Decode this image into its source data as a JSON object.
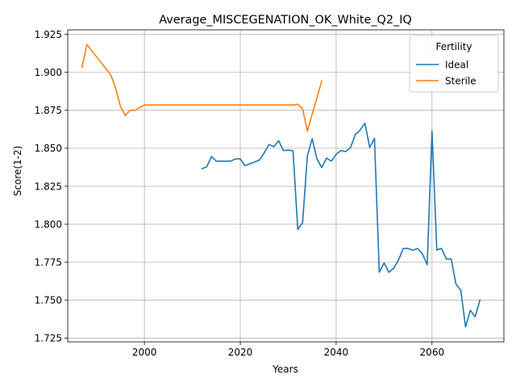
{
  "chart_data": {
    "type": "line",
    "title": "Average_MISCEGENATION_OK_White_Q2_IQ",
    "xlabel": "Years",
    "ylabel": "Score(1-2)",
    "xlim": [
      1984,
      2075
    ],
    "ylim": [
      1.7225,
      1.928
    ],
    "x_ticks": [
      2000,
      2020,
      2040,
      2060
    ],
    "y_ticks": [
      1.725,
      1.75,
      1.775,
      1.8,
      1.825,
      1.85,
      1.875,
      1.9,
      1.925
    ],
    "x_tick_labels": [
      "2000",
      "2020",
      "2040",
      "2060"
    ],
    "y_tick_labels": [
      "1.725",
      "1.750",
      "1.775",
      "1.800",
      "1.825",
      "1.850",
      "1.875",
      "1.900",
      "1.925"
    ],
    "grid": true,
    "legend": {
      "title": "Fertility",
      "placement": "top-right"
    },
    "series": [
      {
        "name": "Ideal",
        "color": "#1f77b4",
        "x": [
          2012,
          2013,
          2014,
          2015,
          2016,
          2017,
          2018,
          2019,
          2020,
          2021,
          2022,
          2023,
          2024,
          2025,
          2026,
          2027,
          2028,
          2029,
          2030,
          2031,
          2032,
          2033,
          2034,
          2035,
          2036,
          2037,
          2038,
          2039,
          2040,
          2041,
          2042,
          2043,
          2044,
          2045,
          2046,
          2047,
          2048,
          2049,
          2050,
          2051,
          2052,
          2053,
          2054,
          2055,
          2056,
          2057,
          2058,
          2059,
          2060,
          2061,
          2062,
          2063,
          2064,
          2065,
          2066,
          2067,
          2068,
          2069,
          2070
        ],
        "y": [
          1.8365,
          1.8378,
          1.8445,
          1.8415,
          1.8415,
          1.8415,
          1.8415,
          1.843,
          1.843,
          1.8385,
          1.8398,
          1.841,
          1.8423,
          1.847,
          1.8525,
          1.851,
          1.855,
          1.8485,
          1.8488,
          1.8483,
          1.7965,
          1.801,
          1.845,
          1.8563,
          1.843,
          1.8373,
          1.8435,
          1.8415,
          1.846,
          1.8485,
          1.8478,
          1.8505,
          1.859,
          1.862,
          1.8665,
          1.8505,
          1.8565,
          1.7683,
          1.7745,
          1.7683,
          1.771,
          1.7763,
          1.784,
          1.784,
          1.7828,
          1.784,
          1.7805,
          1.7733,
          1.8613,
          1.783,
          1.784,
          1.777,
          1.777,
          1.7605,
          1.7565,
          1.7323,
          1.7433,
          1.739,
          1.75
        ]
      },
      {
        "name": "Sterile",
        "color": "#ff7f0e",
        "x": [
          1987,
          1988,
          1993,
          1994,
          1995,
          1996,
          1997,
          1998,
          1999,
          2000,
          2001,
          2010,
          2020,
          2030,
          2031,
          2032,
          2033,
          2034,
          2035,
          2036,
          2037
        ],
        "y": [
          1.9033,
          1.9183,
          1.8983,
          1.8895,
          1.8775,
          1.8715,
          1.875,
          1.875,
          1.8768,
          1.8785,
          1.8785,
          1.8785,
          1.8785,
          1.8785,
          1.8785,
          1.879,
          1.876,
          1.8613,
          1.8725,
          1.8833,
          1.8943
        ]
      }
    ]
  }
}
